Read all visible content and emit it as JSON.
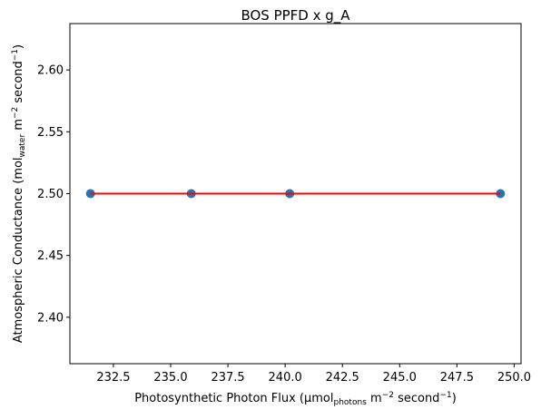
{
  "chart_data": {
    "type": "scatter",
    "title": "BOS PPFD x g_A",
    "xlabel": {
      "prefix": "Photosynthetic Photon Flux (µmol",
      "sub": "photons",
      "middle": " m",
      "sup1": "−2",
      "middle2": " second",
      "sup2": "−1",
      "suffix": ")"
    },
    "ylabel": {
      "prefix": "Atmospheric Conductance (mol",
      "sub": "water",
      "middle": " m",
      "sup1": "−2",
      "middle2": " second",
      "sup2": "−1",
      "suffix": ")"
    },
    "xlim": [
      230.6,
      250.3
    ],
    "ylim": [
      2.3625,
      2.6375
    ],
    "x_ticks": [
      232.5,
      235.0,
      237.5,
      240.0,
      242.5,
      245.0,
      247.5,
      250.0
    ],
    "x_tick_labels": [
      "232.5",
      "235.0",
      "237.5",
      "240.0",
      "242.5",
      "245.0",
      "247.5",
      "250.0"
    ],
    "y_ticks": [
      2.4,
      2.45,
      2.5,
      2.55,
      2.6
    ],
    "y_tick_labels": [
      "2.40",
      "2.45",
      "2.50",
      "2.55",
      "2.60"
    ],
    "grid": false,
    "series": [
      {
        "kind": "points",
        "color": "#1f77b4",
        "x": [
          231.5,
          235.9,
          240.2,
          249.4
        ],
        "y": [
          2.5,
          2.5,
          2.5,
          2.5
        ]
      },
      {
        "kind": "fit-line",
        "color": "#ff0000",
        "x": [
          231.5,
          249.4
        ],
        "y": [
          2.5,
          2.5
        ]
      }
    ]
  }
}
